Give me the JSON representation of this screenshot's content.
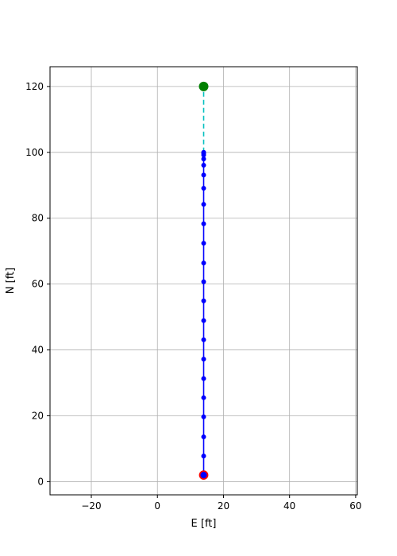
{
  "chart_data": {
    "type": "line",
    "title": "",
    "xlabel": "E [ft]",
    "ylabel": "N [ft]",
    "xlim": [
      -32.5,
      60.5
    ],
    "ylim": [
      -4,
      126
    ],
    "xticks": [
      -20,
      0,
      20,
      40,
      60
    ],
    "yticks": [
      0,
      20,
      40,
      60,
      80,
      100,
      120
    ],
    "grid": true,
    "colors": {
      "path": "#0000ff",
      "planned": "#00bfbf",
      "start_edge": "#ff0000",
      "goal": "#008000",
      "grid": "#b0b0b0"
    },
    "series": [
      {
        "x": [
          14,
          14,
          14,
          14,
          14,
          14,
          14,
          14,
          14,
          14,
          14,
          14,
          14,
          14,
          14,
          14,
          14,
          14,
          14,
          14,
          14,
          14
        ],
        "y": [
          2,
          7.8,
          13.6,
          19.7,
          25.5,
          31.3,
          37.2,
          43.1,
          48.9,
          54.9,
          60.7,
          66.4,
          72.4,
          78.3,
          84.2,
          89.1,
          93.1,
          96.1,
          98,
          99.2,
          99.7,
          100
        ]
      },
      {
        "x": [
          14,
          14
        ],
        "y": [
          100,
          120
        ]
      }
    ],
    "start": {
      "x": 14,
      "y": 2
    },
    "goal": {
      "x": 14,
      "y": 120
    }
  }
}
